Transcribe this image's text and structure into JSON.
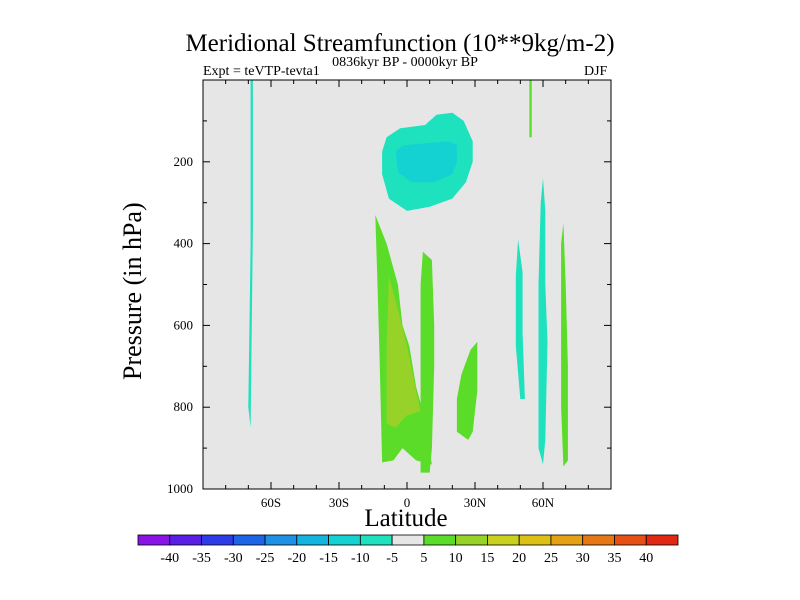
{
  "chart_data": {
    "type": "contour",
    "title": "Meridional Streamfunction (10**9kg/m-2)",
    "subtitle": "0836kyr BP - 0000kyr BP",
    "experiment": "Expt = teVTP-tevta1",
    "season": "DJF",
    "xlabel": "Latitude",
    "ylabel": "Pressure (in hPa)",
    "xlim": [
      -90,
      90
    ],
    "ylim": [
      1000,
      0
    ],
    "x_ticks": [
      {
        "value": -60,
        "label": "60S"
      },
      {
        "value": -30,
        "label": "30S"
      },
      {
        "value": 0,
        "label": "0"
      },
      {
        "value": 30,
        "label": "30N"
      },
      {
        "value": 60,
        "label": "60N"
      }
    ],
    "y_ticks": [
      200,
      400,
      600,
      800,
      1000
    ],
    "background_color": "#e6e6e6",
    "colorbar": {
      "labels": [
        "-40",
        "-35",
        "-30",
        "-25",
        "-20",
        "-15",
        "-10",
        "-5",
        "5",
        "10",
        "15",
        "20",
        "25",
        "30",
        "35",
        "40"
      ],
      "colors": [
        "#8a14e6",
        "#5a1ee6",
        "#2d3ce6",
        "#1e64e6",
        "#1e90e6",
        "#14b4e1",
        "#14d2d2",
        "#1ee1be",
        "#e6e6e6",
        "#5adc28",
        "#96d228",
        "#c8d21e",
        "#dcc014",
        "#e6a014",
        "#e67814",
        "#e65014",
        "#e12814"
      ]
    },
    "regions": [
      {
        "name": "stratosphere-negative-cell",
        "level": "-10",
        "color": "#1ee1be",
        "points": [
          [
            -11,
            175
          ],
          [
            -9,
            140
          ],
          [
            -3,
            118
          ],
          [
            8,
            110
          ],
          [
            13,
            85
          ],
          [
            20,
            80
          ],
          [
            25,
            100
          ],
          [
            29,
            150
          ],
          [
            29,
            200
          ],
          [
            26,
            250
          ],
          [
            20,
            290
          ],
          [
            10,
            310
          ],
          [
            0,
            320
          ],
          [
            -8,
            290
          ],
          [
            -11,
            230
          ]
        ]
      },
      {
        "name": "stratosphere-negative-core",
        "level": "-15",
        "color": "#14d2d2",
        "points": [
          [
            -5,
            175
          ],
          [
            -2,
            160
          ],
          [
            8,
            155
          ],
          [
            18,
            150
          ],
          [
            22,
            160
          ],
          [
            22,
            200
          ],
          [
            20,
            230
          ],
          [
            12,
            250
          ],
          [
            2,
            250
          ],
          [
            -4,
            225
          ]
        ]
      },
      {
        "name": "tropical-positive-west",
        "level": "10",
        "color": "#5adc28",
        "points": [
          [
            -14,
            330
          ],
          [
            -9,
            400
          ],
          [
            -4,
            500
          ],
          [
            -2,
            600
          ],
          [
            1,
            650
          ],
          [
            4,
            750
          ],
          [
            8,
            830
          ],
          [
            11,
            940
          ],
          [
            4,
            930
          ],
          [
            -2,
            900
          ],
          [
            -6,
            930
          ],
          [
            -11,
            935
          ],
          [
            -12,
            700
          ],
          [
            -13,
            500
          ]
        ]
      },
      {
        "name": "tropical-positive-east",
        "level": "10",
        "color": "#5adc28",
        "points": [
          [
            7,
            420
          ],
          [
            11,
            440
          ],
          [
            12,
            600
          ],
          [
            12,
            700
          ],
          [
            11,
            900
          ],
          [
            10,
            960
          ],
          [
            6,
            960
          ],
          [
            6,
            700
          ],
          [
            6,
            500
          ]
        ]
      },
      {
        "name": "tropical-positive-core",
        "level": "15",
        "color": "#96d228",
        "points": [
          [
            -8,
            480
          ],
          [
            -4,
            560
          ],
          [
            0,
            650
          ],
          [
            4,
            760
          ],
          [
            6,
            810
          ],
          [
            0,
            820
          ],
          [
            -5,
            850
          ],
          [
            -9,
            840
          ],
          [
            -9,
            650
          ]
        ]
      },
      {
        "name": "subtropics-positive",
        "level": "10",
        "color": "#5adc28",
        "points": [
          [
            24,
            720
          ],
          [
            28,
            660
          ],
          [
            31,
            640
          ],
          [
            31,
            760
          ],
          [
            29,
            860
          ],
          [
            27,
            880
          ],
          [
            22,
            860
          ],
          [
            22,
            780
          ]
        ]
      },
      {
        "name": "midlat-positive-60n",
        "level": "10",
        "color": "#5adc28",
        "points": [
          [
            69,
            350
          ],
          [
            70,
            500
          ],
          [
            71,
            700
          ],
          [
            71,
            930
          ],
          [
            69,
            945
          ],
          [
            68,
            800
          ],
          [
            68,
            400
          ]
        ]
      },
      {
        "name": "polar-negative-south",
        "level": "-10",
        "color": "#1ee1be",
        "points": [
          [
            -69,
            0
          ],
          [
            -68,
            0
          ],
          [
            -68,
            360
          ],
          [
            -69,
            850
          ],
          [
            -70,
            800
          ],
          [
            -69,
            400
          ]
        ]
      },
      {
        "name": "midlat-negative-a",
        "level": "-10",
        "color": "#1ee1be",
        "points": [
          [
            49,
            390
          ],
          [
            51,
            470
          ],
          [
            51,
            620
          ],
          [
            52,
            780
          ],
          [
            50,
            780
          ],
          [
            48,
            650
          ],
          [
            48,
            480
          ]
        ]
      },
      {
        "name": "midlat-negative-b",
        "level": "-10",
        "color": "#1ee1be",
        "points": [
          [
            60,
            240
          ],
          [
            61,
            320
          ],
          [
            61,
            500
          ],
          [
            62,
            640
          ],
          [
            61,
            880
          ],
          [
            60,
            940
          ],
          [
            58,
            900
          ],
          [
            58,
            700
          ],
          [
            58,
            500
          ],
          [
            59,
            300
          ]
        ]
      },
      {
        "name": "stratosphere-positive-60n",
        "level": "10",
        "color": "#5adc28",
        "points": [
          [
            54,
            0
          ],
          [
            55,
            0
          ],
          [
            55,
            140
          ],
          [
            54,
            140
          ]
        ]
      }
    ]
  }
}
